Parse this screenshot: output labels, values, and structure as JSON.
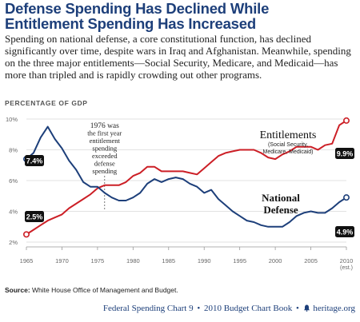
{
  "header": {
    "title_line1": "Defense Spending Has Declined While",
    "title_line2": "Entitlement Spending Has Increased",
    "subtitle": "Spending on national defense, a core constitutional function, has declined significantly over time, despite wars in Iraq and Afghanistan. Meanwhile, spending on the three major entitlements—Social Security, Medicare, and Medicaid—has more than tripled and is rapidly crowding out other programs.",
    "axis_caption": "PERCENTAGE OF GDP"
  },
  "chart_data": {
    "type": "line",
    "ylabel": "PERCENTAGE OF GDP",
    "xlim": [
      1965,
      2010
    ],
    "ylim": [
      2,
      10
    ],
    "yticks": [
      "2%",
      "4%",
      "6%",
      "8%",
      "10%"
    ],
    "ytick_values": [
      2,
      4,
      6,
      8,
      10
    ],
    "xticks": [
      "1965",
      "1970",
      "1975",
      "1980",
      "1985",
      "1990",
      "1995",
      "2000",
      "2005",
      "2010"
    ],
    "xtick_values": [
      1965,
      1970,
      1975,
      1980,
      1985,
      1990,
      1995,
      2000,
      2005,
      2010
    ],
    "xtick_sub": "(est.)",
    "grid": "horizontal",
    "series": [
      {
        "name": "Entitlements",
        "sublabel1": "(Social Security,",
        "sublabel2": "Medicare, Medicaid)",
        "color": "#cc1f26",
        "start_label": "2.5%",
        "end_label": "9.9%",
        "x": [
          1965,
          1966,
          1967,
          1968,
          1969,
          1970,
          1971,
          1972,
          1973,
          1974,
          1975,
          1976,
          1977,
          1978,
          1979,
          1980,
          1981,
          1982,
          1983,
          1984,
          1985,
          1986,
          1987,
          1988,
          1989,
          1990,
          1991,
          1992,
          1993,
          1994,
          1995,
          1996,
          1997,
          1998,
          1999,
          2000,
          2001,
          2002,
          2003,
          2004,
          2005,
          2006,
          2007,
          2008,
          2009,
          2010
        ],
        "values": [
          2.5,
          2.8,
          3.1,
          3.4,
          3.6,
          3.8,
          4.2,
          4.5,
          4.8,
          5.1,
          5.5,
          5.7,
          5.7,
          5.7,
          5.9,
          6.3,
          6.5,
          6.9,
          6.9,
          6.6,
          6.6,
          6.6,
          6.6,
          6.5,
          6.4,
          6.8,
          7.2,
          7.6,
          7.8,
          7.9,
          8.0,
          8.0,
          8.0,
          7.8,
          7.5,
          7.4,
          7.7,
          7.9,
          8.2,
          8.2,
          8.2,
          8.0,
          8.3,
          8.4,
          9.6,
          9.9
        ]
      },
      {
        "name": "National Defense",
        "label_line1": "National",
        "label_line2": "Defense",
        "color": "#1d3f7a",
        "start_label": "7.4%",
        "end_label": "4.9%",
        "x": [
          1965,
          1966,
          1967,
          1968,
          1969,
          1970,
          1971,
          1972,
          1973,
          1974,
          1975,
          1976,
          1977,
          1978,
          1979,
          1980,
          1981,
          1982,
          1983,
          1984,
          1985,
          1986,
          1987,
          1988,
          1989,
          1990,
          1991,
          1992,
          1993,
          1994,
          1995,
          1996,
          1997,
          1998,
          1999,
          2000,
          2001,
          2002,
          2003,
          2004,
          2005,
          2006,
          2007,
          2008,
          2009,
          2010
        ],
        "values": [
          7.4,
          7.8,
          8.8,
          9.5,
          8.7,
          8.1,
          7.3,
          6.7,
          5.9,
          5.6,
          5.6,
          5.2,
          4.9,
          4.7,
          4.7,
          4.9,
          5.2,
          5.8,
          6.1,
          5.9,
          6.1,
          6.2,
          6.1,
          5.8,
          5.6,
          5.2,
          5.4,
          4.8,
          4.4,
          4.0,
          3.7,
          3.4,
          3.3,
          3.1,
          3.0,
          3.0,
          3.0,
          3.3,
          3.7,
          3.9,
          4.0,
          3.9,
          3.9,
          4.2,
          4.6,
          4.9
        ]
      }
    ],
    "annotation": {
      "year": 1976,
      "lines": [
        "1976 was",
        "the first year",
        "entitlement",
        "spending",
        "exceeded",
        "defense",
        "spending"
      ]
    }
  },
  "source": {
    "label": "Source:",
    "text": "White House Office of Management and Budget."
  },
  "footer": {
    "chart_name": "Federal Spending Chart 9",
    "book": "2010 Budget Chart Book",
    "site": "heritage.org",
    "separator": "•"
  },
  "colors": {
    "brand": "#1d3f7a",
    "entitlements": "#cc1f26",
    "defense": "#1d3f7a"
  }
}
